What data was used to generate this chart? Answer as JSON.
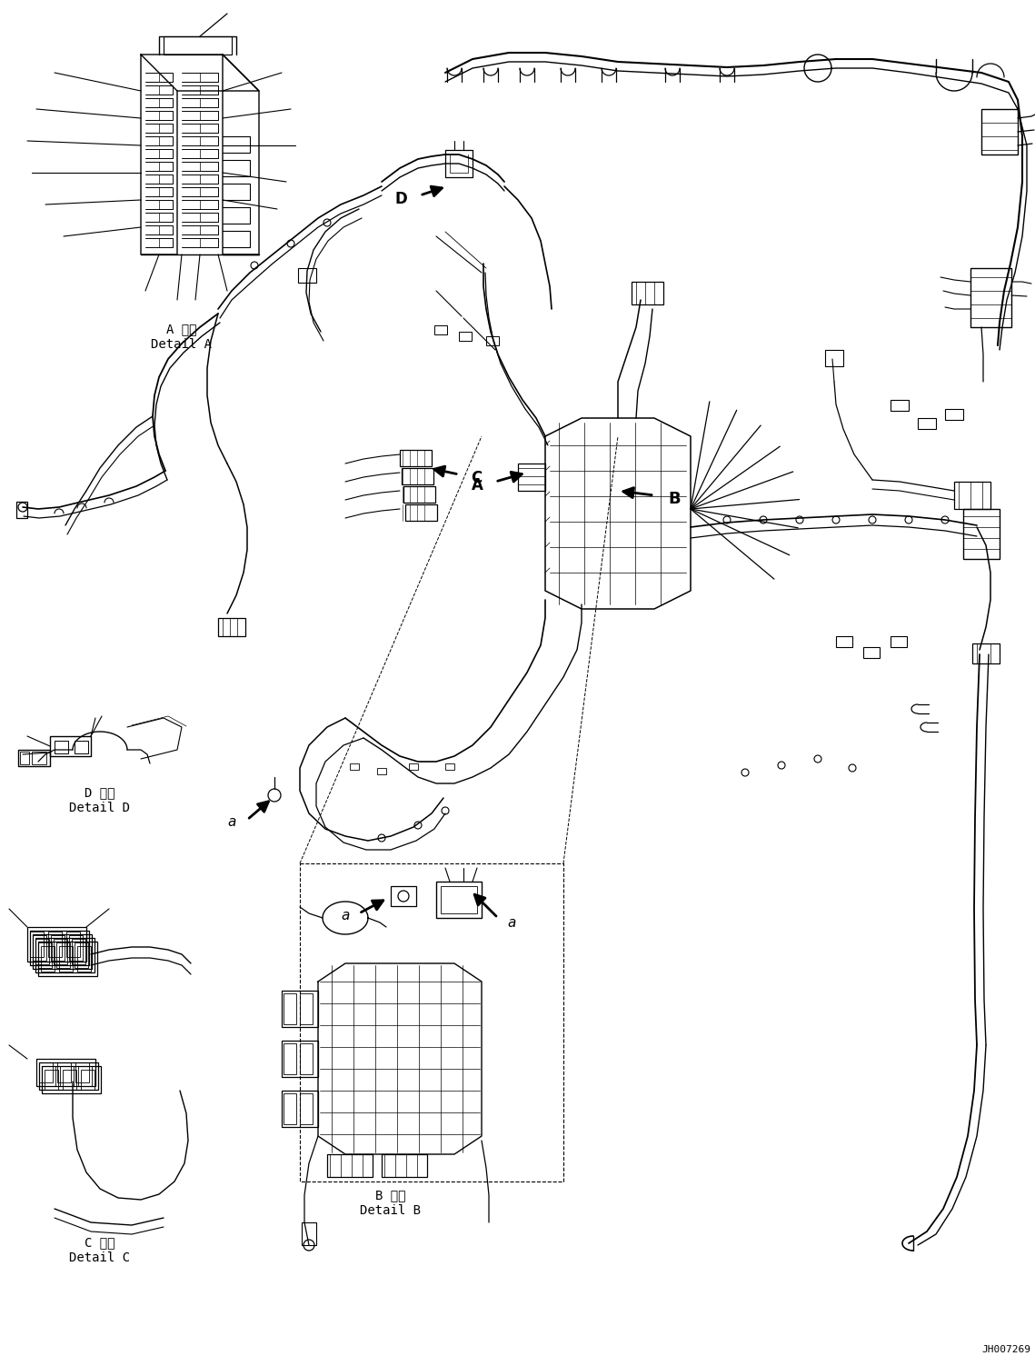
{
  "figsize": [
    11.39,
    14.92
  ],
  "dpi": 100,
  "bg_color": "#ffffff",
  "watermark": "JH007269",
  "detail_a_jp": "A 詳細",
  "detail_a_en": "Detail A",
  "detail_b_jp": "B 詳細",
  "detail_b_en": "Detail B",
  "detail_c_jp": "C 詳細",
  "detail_c_en": "Detail C",
  "detail_d_jp": "D 詳細",
  "detail_d_en": "Detail D"
}
